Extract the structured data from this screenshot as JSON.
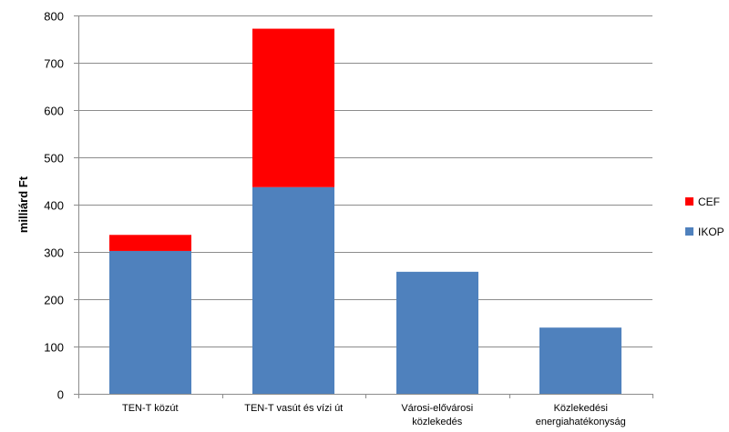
{
  "chart_data": {
    "type": "bar",
    "stacked": true,
    "categories": [
      [
        "TEN-T közút"
      ],
      [
        "TEN-T vasút és vízi út"
      ],
      [
        "Városi-elővárosi",
        "közlekedés"
      ],
      [
        "Közlekedési",
        "energiahatékonyság"
      ]
    ],
    "series": [
      {
        "name": "IKOP",
        "color": "#4f81bd",
        "values": [
          302,
          437,
          258,
          140
        ]
      },
      {
        "name": "CEF",
        "color": "#ff0000",
        "values": [
          34,
          335,
          0,
          0
        ]
      }
    ],
    "legend_order": [
      "CEF",
      "IKOP"
    ],
    "title": "",
    "xlabel": "",
    "ylabel": "milliárd Ft",
    "ylim": [
      0,
      800
    ],
    "yticks": [
      0,
      100,
      200,
      300,
      400,
      500,
      600,
      700,
      800
    ],
    "grid": true,
    "legend_position": "right"
  }
}
